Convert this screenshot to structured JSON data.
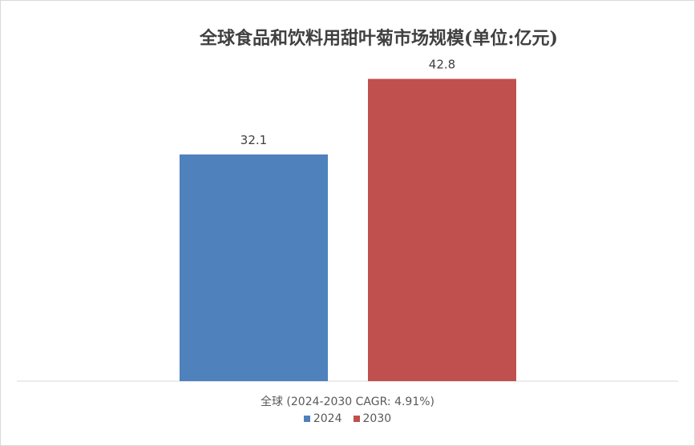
{
  "chart_data": {
    "type": "bar",
    "title": "全球食品和饮料用甜叶菊市场规模(单位:亿元)",
    "categories": [
      "全球 (2024-2030 CAGR: 4.91%)"
    ],
    "series": [
      {
        "name": "2024",
        "values": [
          32.1
        ],
        "color": "#4F81BD",
        "value_label": "32.1"
      },
      {
        "name": "2030",
        "values": [
          42.8
        ],
        "color": "#C0504D",
        "value_label": "42.8"
      }
    ],
    "ylim": [
      0,
      50
    ],
    "grid": false,
    "legend": "bottom"
  }
}
